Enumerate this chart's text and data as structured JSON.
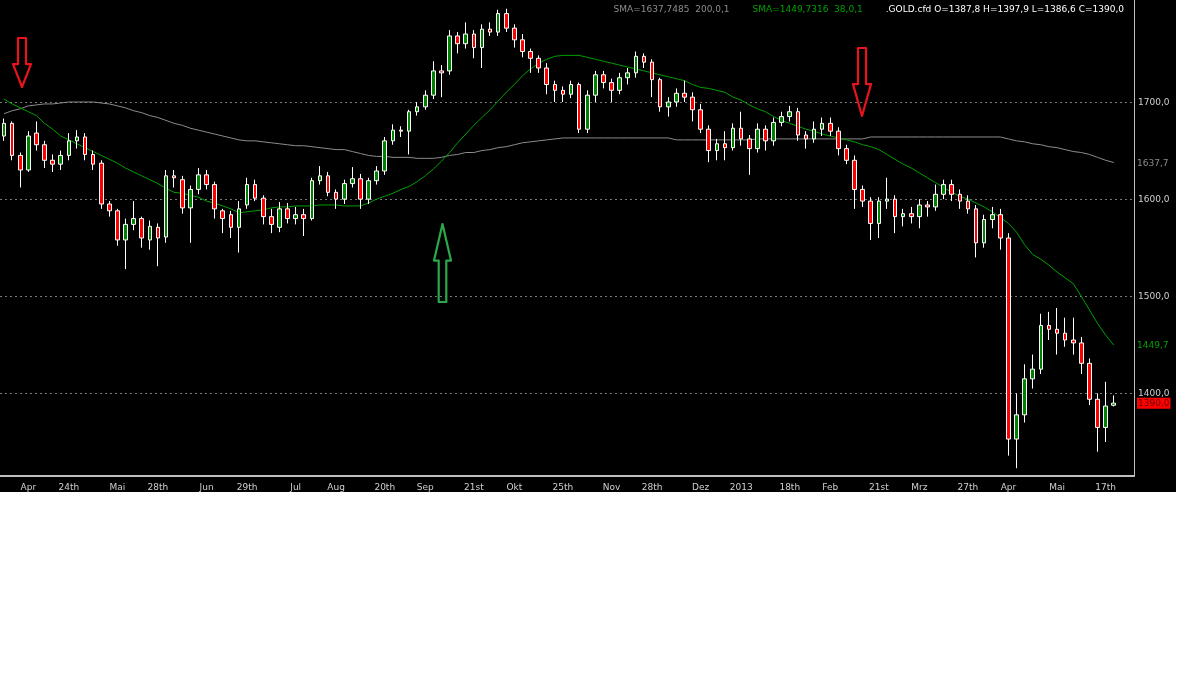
{
  "chart_data": {
    "type": "candlestick",
    "categories": [
      null,
      null,
      null,
      "Apr",
      null,
      null,
      null,
      null,
      "24th",
      null,
      null,
      null,
      null,
      null,
      "Mai",
      null,
      null,
      null,
      null,
      "28th",
      null,
      null,
      null,
      null,
      null,
      "Jun",
      null,
      null,
      null,
      null,
      "29th",
      null,
      null,
      null,
      null,
      null,
      "Jul",
      null,
      null,
      null,
      null,
      "Aug",
      null,
      null,
      null,
      null,
      null,
      "20th",
      null,
      null,
      null,
      null,
      "Sep",
      null,
      null,
      null,
      null,
      null,
      "21st",
      null,
      null,
      null,
      null,
      "Okt",
      null,
      null,
      null,
      null,
      null,
      "25th",
      null,
      null,
      null,
      null,
      null,
      "Nov",
      null,
      null,
      null,
      null,
      "28th",
      null,
      null,
      null,
      null,
      null,
      "Dez",
      null,
      null,
      null,
      null,
      "2013",
      null,
      null,
      null,
      null,
      null,
      "18th",
      null,
      null,
      null,
      null,
      "Feb",
      null,
      null,
      null,
      null,
      null,
      "21st",
      null,
      null,
      null,
      null,
      "Mrz",
      null,
      null,
      null,
      null,
      null,
      "27th",
      null,
      null,
      null,
      null,
      "Apr",
      null,
      null,
      null,
      null,
      null,
      "Mai",
      null,
      null,
      null,
      null,
      null,
      "17th",
      null,
      null,
      null
    ],
    "series": [
      {
        "type": "line",
        "name": "SMA=1637,7485  200,0,1",
        "color": "#8c8c8c",
        "values": [
          1688,
          1691,
          1693,
          1696,
          1697,
          1698,
          1698,
          1699,
          1700,
          1700,
          1700,
          1700,
          1699,
          1698,
          1696,
          1694,
          1691,
          1689,
          1686,
          1684,
          1681,
          1678,
          1676,
          1673,
          1671,
          1669,
          1667,
          1665,
          1663,
          1661,
          1660,
          1660,
          1659,
          1658,
          1657,
          1656,
          1655,
          1655,
          1654,
          1653,
          1652,
          1651,
          1651,
          1649,
          1647,
          1645,
          1644,
          1644,
          1643,
          1643,
          1643,
          1642,
          1642,
          1642,
          1643,
          1645,
          1646,
          1648,
          1648,
          1650,
          1651,
          1653,
          1654,
          1656,
          1658,
          1659,
          1660,
          1661,
          1662,
          1663,
          1663,
          1663,
          1663,
          1663,
          1663,
          1663,
          1663,
          1663,
          1663,
          1663,
          1663,
          1663,
          1663,
          1661,
          1661,
          1661,
          1661,
          1661,
          1661,
          1661,
          1661,
          1661,
          1661,
          1662,
          1662,
          1662,
          1662,
          1662,
          1662,
          1662,
          1662,
          1662,
          1662,
          1662,
          1662,
          1662,
          1662,
          1664,
          1664,
          1664,
          1664,
          1664,
          1664,
          1664,
          1664,
          1664,
          1664,
          1664,
          1664,
          1664,
          1664,
          1664,
          1664,
          1664,
          1662,
          1660,
          1659,
          1657,
          1656,
          1654,
          1653,
          1651,
          1649,
          1648,
          1646,
          1643,
          1640,
          1637.7,
          null,
          null
        ]
      },
      {
        "type": "line",
        "name": "SMA=1449,7316  38,0,1",
        "color": "#00a000",
        "values": [
          1703,
          1698,
          1694,
          1690,
          1686,
          1678,
          1672,
          1665,
          1661,
          1657,
          1653,
          1649,
          1645,
          1641,
          1637,
          1632,
          1628,
          1624,
          1620,
          1616,
          1611,
          1607,
          1606,
          1604,
          1602,
          1598,
          1596,
          1593,
          1590,
          1586,
          1587,
          1588,
          1589,
          1591,
          1592,
          1592,
          1593,
          1593,
          1593,
          1594,
          1594,
          1594,
          1593,
          1593,
          1593,
          1596,
          1600,
          1603,
          1606,
          1610,
          1613,
          1618,
          1624,
          1631,
          1639,
          1648,
          1658,
          1667,
          1676,
          1684,
          1692,
          1701,
          1710,
          1718,
          1727,
          1734,
          1740,
          1744,
          1747,
          1748,
          1748,
          1748,
          1746,
          1744,
          1742,
          1740,
          1738,
          1736,
          1734,
          1732,
          1730,
          1728,
          1726,
          1724,
          1722,
          1718,
          1715,
          1714,
          1712,
          1710,
          1705,
          1702,
          1697,
          1693,
          1690,
          1685,
          1681,
          1678,
          1675,
          1672,
          1670,
          1667,
          1665,
          1663,
          1661,
          1659,
          1656,
          1654,
          1651,
          1646,
          1641,
          1636,
          1632,
          1627,
          1622,
          1617,
          1612,
          1607,
          1603,
          1600,
          1596,
          1592,
          1587,
          1581,
          1575,
          1566,
          1553,
          1543,
          1538,
          1532,
          1525,
          1519,
          1513,
          1500,
          1486,
          1472,
          1460,
          1449.7,
          null,
          null
        ]
      },
      {
        "name": ".GOLD.cfd O=1387,8 H=1397,9 L=1386,6 C=1390,0",
        "colors": [
          "#008000",
          "#ff0000",
          "#ff0000",
          "#008000",
          "#ff0000",
          "#ff0000",
          "#ff0000",
          "#008000",
          "#008000",
          "#008000",
          "#ff0000",
          "#ff0000",
          "#ff0000",
          "#ff0000",
          "#ff0000",
          "#008000",
          "#008000",
          "#ff0000",
          "#008000",
          "#ff0000",
          "#008000",
          "#ff0000",
          "#ff0000",
          "#008000",
          "#008000",
          "#ff0000",
          "#ff0000",
          "#ff0000",
          "#ff0000",
          "#008000",
          "#008000",
          "#ff0000",
          "#ff0000",
          "#ff0000",
          "#008000",
          "#ff0000",
          "#008000",
          "#ff0000",
          "#008000",
          "#008000",
          "#ff0000",
          "#ff0000",
          "#008000",
          "#008000",
          "#ff0000",
          "#008000",
          "#008000",
          "#008000",
          "#008000",
          "#ff0000",
          "#008000",
          "#008000",
          "#008000",
          "#008000",
          "#ff0000",
          "#008000",
          "#ff0000",
          "#008000",
          "#ff0000",
          "#008000",
          "#ff0000",
          "#008000",
          "#ff0000",
          "#ff0000",
          "#ff0000",
          "#ff0000",
          "#ff0000",
          "#ff0000",
          "#ff0000",
          "#ff0000",
          "#008000",
          "#ff0000",
          "#008000",
          "#008000",
          "#ff0000",
          "#ff0000",
          "#008000",
          "#008000",
          "#008000",
          "#ff0000",
          "#ff0000",
          "#ff0000",
          "#008000",
          "#008000",
          "#ff0000",
          "#ff0000",
          "#ff0000",
          "#ff0000",
          "#008000",
          "#ff0000",
          "#008000",
          "#ff0000",
          "#ff0000",
          "#008000",
          "#ff0000",
          "#008000",
          "#008000",
          "#008000",
          "#ff0000",
          "#ff0000",
          "#008000",
          "#008000",
          "#ff0000",
          "#ff0000",
          "#ff0000",
          "#ff0000",
          "#ff0000",
          "#ff0000",
          "#008000",
          "#008000",
          "#ff0000",
          "#008000",
          "#ff0000",
          "#008000",
          "#ff0000",
          "#008000",
          "#008000",
          "#ff0000",
          "#ff0000",
          "#ff0000",
          "#ff0000",
          "#008000",
          "#008000",
          "#ff0000",
          "#ff0000",
          "#008000",
          "#008000",
          "#008000",
          "#008000",
          "#ff0000",
          "#ff0000",
          "#ff0000",
          "#ff0000",
          "#ff0000",
          "#ff0000",
          "#ff0000",
          "#008000",
          "#008000",
          null,
          null
        ],
        "ohlc": [
          [
            1665,
            1683,
            1660,
            1678
          ],
          [
            1678,
            1680,
            1640,
            1645
          ],
          [
            1645,
            1648,
            1612,
            1630
          ],
          [
            1630,
            1670,
            1628,
            1665
          ],
          [
            1668,
            1680,
            1650,
            1656
          ],
          [
            1656,
            1660,
            1632,
            1640
          ],
          [
            1640,
            1646,
            1628,
            1636
          ],
          [
            1636,
            1650,
            1630,
            1645
          ],
          [
            1645,
            1668,
            1640,
            1660
          ],
          [
            1660,
            1671,
            1652,
            1664
          ],
          [
            1664,
            1668,
            1640,
            1646
          ],
          [
            1646,
            1650,
            1630,
            1636
          ],
          [
            1637,
            1640,
            1590,
            1595
          ],
          [
            1595,
            1598,
            1582,
            1588
          ],
          [
            1588,
            1590,
            1552,
            1558
          ],
          [
            1558,
            1580,
            1528,
            1574
          ],
          [
            1574,
            1598,
            1568,
            1580
          ],
          [
            1580,
            1582,
            1550,
            1560
          ],
          [
            1558,
            1578,
            1548,
            1572
          ],
          [
            1571,
            1575,
            1531,
            1560
          ],
          [
            1561,
            1630,
            1555,
            1624
          ],
          [
            1624,
            1630,
            1612,
            1622
          ],
          [
            1620,
            1624,
            1585,
            1591
          ],
          [
            1591,
            1614,
            1555,
            1610
          ],
          [
            1610,
            1632,
            1605,
            1625
          ],
          [
            1625,
            1630,
            1610,
            1615
          ],
          [
            1615,
            1618,
            1580,
            1590
          ],
          [
            1588,
            1590,
            1565,
            1580
          ],
          [
            1584,
            1588,
            1560,
            1571
          ],
          [
            1571,
            1598,
            1545,
            1590
          ],
          [
            1594,
            1622,
            1590,
            1615
          ],
          [
            1615,
            1620,
            1598,
            1601
          ],
          [
            1601,
            1604,
            1574,
            1582
          ],
          [
            1582,
            1590,
            1565,
            1574
          ],
          [
            1571,
            1597,
            1566,
            1590
          ],
          [
            1590,
            1596,
            1575,
            1580
          ],
          [
            1580,
            1592,
            1574,
            1584
          ],
          [
            1584,
            1590,
            1562,
            1580
          ],
          [
            1580,
            1622,
            1578,
            1619
          ],
          [
            1619,
            1634,
            1615,
            1624
          ],
          [
            1624,
            1628,
            1603,
            1607
          ],
          [
            1607,
            1610,
            1590,
            1600
          ],
          [
            1600,
            1620,
            1595,
            1616
          ],
          [
            1616,
            1633,
            1612,
            1621
          ],
          [
            1621,
            1626,
            1590,
            1600
          ],
          [
            1600,
            1622,
            1595,
            1619
          ],
          [
            1619,
            1634,
            1615,
            1629
          ],
          [
            1629,
            1664,
            1625,
            1660
          ],
          [
            1660,
            1677,
            1656,
            1671
          ],
          [
            1671,
            1675,
            1664,
            1670
          ],
          [
            1670,
            1692,
            1646,
            1690
          ],
          [
            1690,
            1700,
            1686,
            1695
          ],
          [
            1695,
            1712,
            1692,
            1707
          ],
          [
            1707,
            1742,
            1703,
            1732
          ],
          [
            1732,
            1738,
            1705,
            1730
          ],
          [
            1732,
            1774,
            1728,
            1768
          ],
          [
            1768,
            1772,
            1750,
            1760
          ],
          [
            1760,
            1782,
            1755,
            1770
          ],
          [
            1770,
            1774,
            1745,
            1756
          ],
          [
            1756,
            1780,
            1735,
            1775
          ],
          [
            1775,
            1782,
            1768,
            1772
          ],
          [
            1772,
            1795,
            1768,
            1791
          ],
          [
            1791,
            1796,
            1772,
            1776
          ],
          [
            1776,
            1780,
            1756,
            1764
          ],
          [
            1764,
            1770,
            1746,
            1752
          ],
          [
            1752,
            1755,
            1730,
            1745
          ],
          [
            1745,
            1748,
            1730,
            1735
          ],
          [
            1735,
            1740,
            1708,
            1718
          ],
          [
            1718,
            1722,
            1700,
            1712
          ],
          [
            1712,
            1716,
            1700,
            1708
          ],
          [
            1708,
            1722,
            1704,
            1718
          ],
          [
            1718,
            1720,
            1668,
            1672
          ],
          [
            1672,
            1712,
            1668,
            1707
          ],
          [
            1707,
            1732,
            1700,
            1728
          ],
          [
            1728,
            1732,
            1714,
            1720
          ],
          [
            1720,
            1724,
            1700,
            1712
          ],
          [
            1712,
            1730,
            1708,
            1725
          ],
          [
            1725,
            1735,
            1718,
            1730
          ],
          [
            1730,
            1752,
            1725,
            1747
          ],
          [
            1747,
            1750,
            1735,
            1741
          ],
          [
            1741,
            1744,
            1705,
            1723
          ],
          [
            1723,
            1725,
            1690,
            1695
          ],
          [
            1695,
            1705,
            1685,
            1700
          ],
          [
            1700,
            1714,
            1695,
            1709
          ],
          [
            1709,
            1722,
            1700,
            1705
          ],
          [
            1705,
            1710,
            1680,
            1692
          ],
          [
            1692,
            1698,
            1668,
            1672
          ],
          [
            1672,
            1676,
            1638,
            1650
          ],
          [
            1650,
            1662,
            1640,
            1657
          ],
          [
            1657,
            1670,
            1640,
            1653
          ],
          [
            1653,
            1678,
            1650,
            1673
          ],
          [
            1673,
            1690,
            1655,
            1662
          ],
          [
            1662,
            1666,
            1625,
            1652
          ],
          [
            1652,
            1678,
            1648,
            1672
          ],
          [
            1672,
            1676,
            1650,
            1660
          ],
          [
            1660,
            1684,
            1655,
            1679
          ],
          [
            1679,
            1690,
            1675,
            1685
          ],
          [
            1685,
            1696,
            1680,
            1690
          ],
          [
            1690,
            1694,
            1660,
            1666
          ],
          [
            1666,
            1670,
            1652,
            1662
          ],
          [
            1662,
            1680,
            1658,
            1672
          ],
          [
            1672,
            1684,
            1665,
            1678
          ],
          [
            1678,
            1684,
            1665,
            1670
          ],
          [
            1670,
            1674,
            1645,
            1652
          ],
          [
            1652,
            1656,
            1636,
            1640
          ],
          [
            1640,
            1645,
            1590,
            1610
          ],
          [
            1610,
            1614,
            1592,
            1598
          ],
          [
            1598,
            1602,
            1558,
            1575
          ],
          [
            1575,
            1602,
            1560,
            1598
          ],
          [
            1598,
            1622,
            1590,
            1600
          ],
          [
            1600,
            1604,
            1565,
            1582
          ],
          [
            1582,
            1590,
            1572,
            1585
          ],
          [
            1585,
            1592,
            1575,
            1582
          ],
          [
            1582,
            1600,
            1570,
            1594
          ],
          [
            1594,
            1598,
            1582,
            1592
          ],
          [
            1592,
            1615,
            1588,
            1605
          ],
          [
            1605,
            1620,
            1600,
            1615
          ],
          [
            1615,
            1620,
            1598,
            1605
          ],
          [
            1605,
            1610,
            1590,
            1598
          ],
          [
            1598,
            1604,
            1585,
            1590
          ],
          [
            1590,
            1594,
            1540,
            1555
          ],
          [
            1555,
            1584,
            1550,
            1579
          ],
          [
            1579,
            1592,
            1570,
            1584
          ],
          [
            1584,
            1590,
            1548,
            1560
          ],
          [
            1560,
            1565,
            1336,
            1353
          ],
          [
            1353,
            1400,
            1323,
            1378
          ],
          [
            1378,
            1430,
            1370,
            1415
          ],
          [
            1415,
            1440,
            1405,
            1425
          ],
          [
            1425,
            1482,
            1420,
            1470
          ],
          [
            1470,
            1484,
            1455,
            1466
          ],
          [
            1466,
            1488,
            1440,
            1462
          ],
          [
            1462,
            1478,
            1448,
            1455
          ],
          [
            1455,
            1478,
            1440,
            1452
          ],
          [
            1452,
            1458,
            1420,
            1431
          ],
          [
            1431,
            1436,
            1388,
            1394
          ],
          [
            1394,
            1400,
            1340,
            1365
          ],
          [
            1365,
            1412,
            1350,
            1387
          ],
          [
            1387.8,
            1397.9,
            1386.6,
            1390.0
          ],
          null,
          null
        ]
      }
    ],
    "ylim": [
      1315,
      1805
    ],
    "yticks": [
      {
        "value": 1400,
        "label": "1400,0"
      },
      {
        "value": 1500,
        "label": "1500,0"
      },
      {
        "value": 1600,
        "label": "1600,0"
      },
      {
        "value": 1700,
        "label": "1700,0"
      }
    ],
    "annotations": [
      "1637,7",
      "1449,7",
      "1390,0"
    ],
    "grid": "y",
    "legend": "top right"
  }
}
